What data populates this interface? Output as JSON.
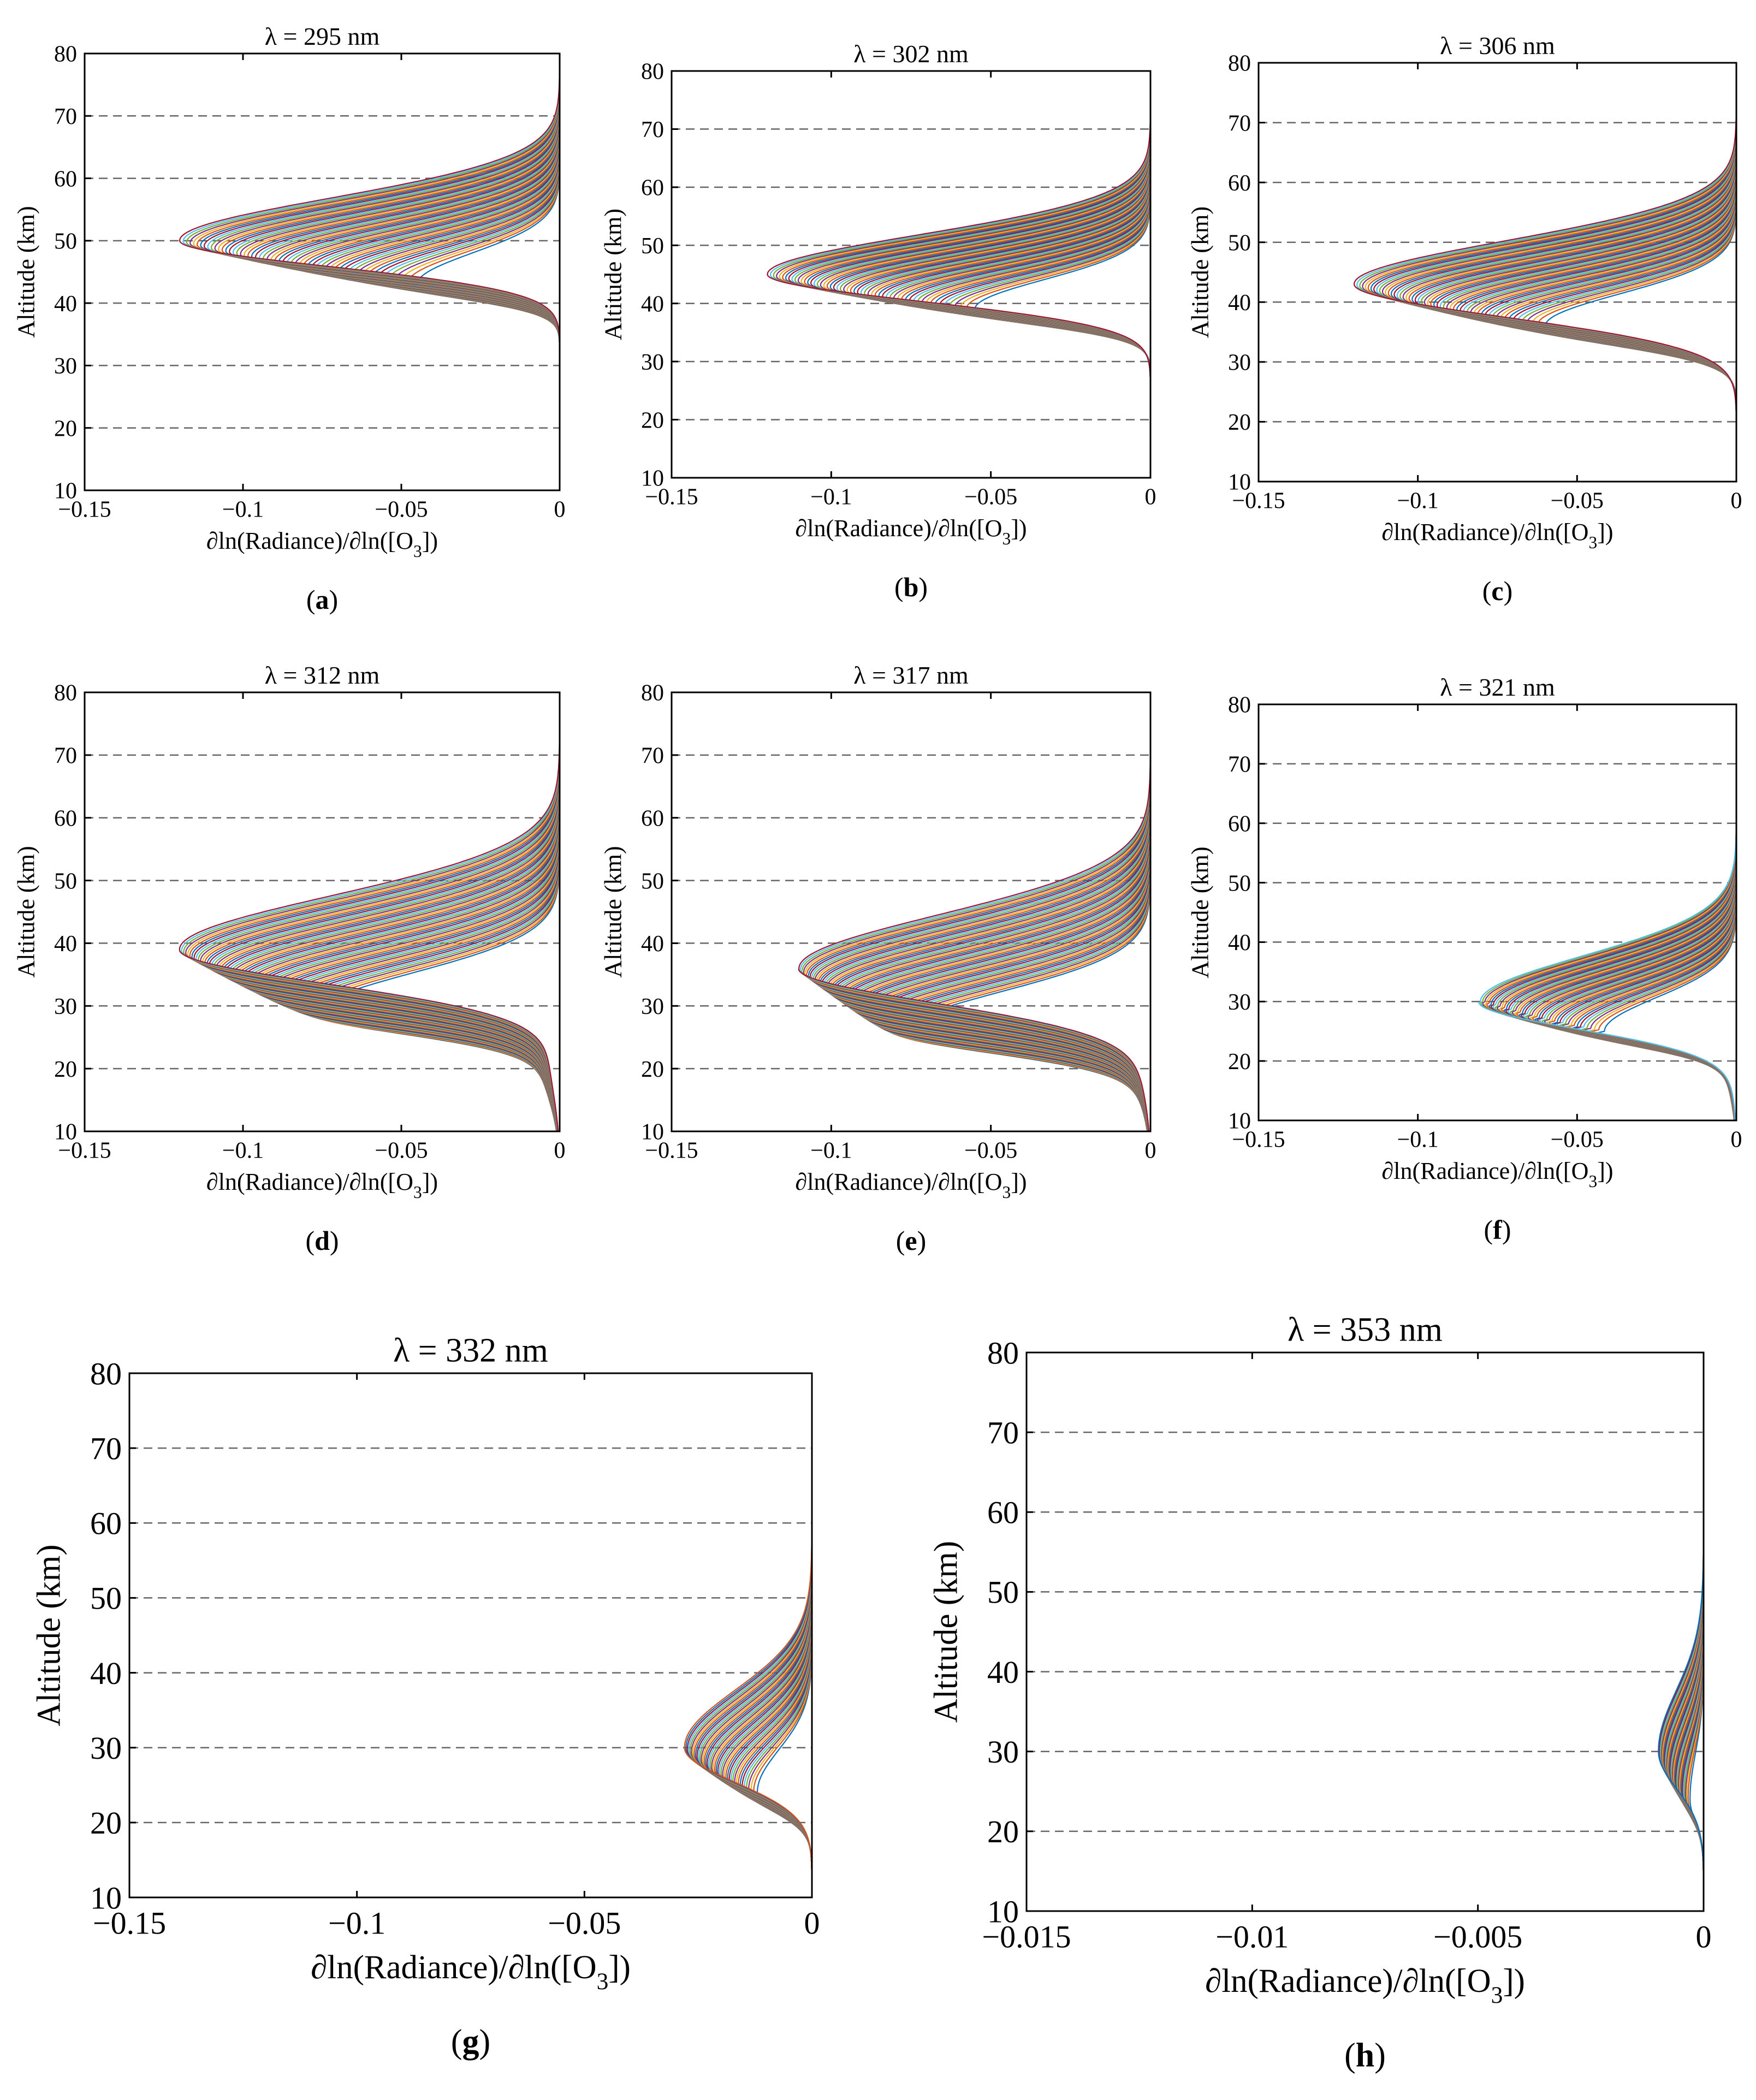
{
  "figure": {
    "background": "#ffffff"
  },
  "colors": [
    "#0072bd",
    "#d95319",
    "#edb120",
    "#7e2f8e",
    "#77ac30",
    "#4dbeee",
    "#a2142f"
  ],
  "chart_data": [
    {
      "id": "a",
      "type": "line",
      "title": "λ = 295 nm",
      "panel_label": "a",
      "xlabel": "∂ln(Radiance)/∂ln([O",
      "xlabel_sub": "3",
      "xlabel_suffix": "])",
      "ylabel": "Altitude (km)",
      "xlim": [
        -0.15,
        0
      ],
      "ylim": [
        10,
        80
      ],
      "xticks": [
        -0.15,
        -0.1,
        -0.05,
        0
      ],
      "xticklabels": [
        "−0.15",
        "−0.1",
        "−0.05",
        "0"
      ],
      "yticks": [
        10,
        20,
        30,
        40,
        50,
        60,
        70,
        80
      ],
      "grid_y": [
        20,
        30,
        40,
        50,
        60,
        70
      ],
      "curves": {
        "n": 56,
        "peak_alt": [
          43,
          50
        ],
        "peak_val": [
          -0.045,
          -0.12
        ],
        "width_below": 4.5,
        "width_above": 8,
        "floor": 0
      }
    },
    {
      "id": "b",
      "type": "line",
      "title": "λ = 302 nm",
      "panel_label": "b",
      "xlabel": "∂ln(Radiance)/∂ln([O",
      "xlabel_sub": "3",
      "xlabel_suffix": "])",
      "ylabel": "Altitude (km)",
      "xlim": [
        -0.15,
        0
      ],
      "ylim": [
        10,
        80
      ],
      "xticks": [
        -0.15,
        -0.1,
        -0.05,
        0
      ],
      "xticklabels": [
        "−0.15",
        "−0.1",
        "−0.05",
        "0"
      ],
      "yticks": [
        10,
        20,
        30,
        40,
        50,
        60,
        70,
        80
      ],
      "grid_y": [
        20,
        30,
        40,
        50,
        60,
        70
      ],
      "curves": {
        "n": 56,
        "peak_alt": [
          39,
          45
        ],
        "peak_val": [
          -0.055,
          -0.12
        ],
        "width_below": 5,
        "width_above": 8,
        "floor": 0
      }
    },
    {
      "id": "c",
      "type": "line",
      "title": "λ = 306 nm",
      "panel_label": "c",
      "xlabel": "∂ln(Radiance)/∂ln([O",
      "xlabel_sub": "3",
      "xlabel_suffix": "])",
      "ylabel": "Altitude (km)",
      "xlim": [
        -0.15,
        0
      ],
      "ylim": [
        10,
        80
      ],
      "xticks": [
        -0.15,
        -0.1,
        -0.05,
        0
      ],
      "xticklabels": [
        "−0.15",
        "−0.1",
        "−0.05",
        "0"
      ],
      "yticks": [
        10,
        20,
        30,
        40,
        50,
        60,
        70,
        80
      ],
      "grid_y": [
        20,
        30,
        40,
        50,
        60,
        70
      ],
      "curves": {
        "n": 56,
        "peak_alt": [
          36,
          43
        ],
        "peak_val": [
          -0.06,
          -0.12
        ],
        "width_below": 6,
        "width_above": 8.5,
        "floor": 0
      }
    },
    {
      "id": "d",
      "type": "line",
      "title": "λ = 312 nm",
      "panel_label": "d",
      "xlabel": "∂ln(Radiance)/∂ln([O",
      "xlabel_sub": "3",
      "xlabel_suffix": "])",
      "ylabel": "Altitude (km)",
      "xlim": [
        -0.15,
        0
      ],
      "ylim": [
        10,
        80
      ],
      "xticks": [
        -0.15,
        -0.1,
        -0.05,
        0
      ],
      "xticklabels": [
        "−0.15",
        "−0.1",
        "−0.05",
        "0"
      ],
      "yticks": [
        10,
        20,
        30,
        40,
        50,
        60,
        70,
        80
      ],
      "grid_y": [
        20,
        30,
        40,
        50,
        60,
        70
      ],
      "curves": {
        "n": 56,
        "peak_alt": [
          29,
          39
        ],
        "peak_val": [
          -0.075,
          -0.12
        ],
        "width_below": 6,
        "width_above": 10,
        "floor": -0.006
      }
    },
    {
      "id": "e",
      "type": "line",
      "title": "λ = 317 nm",
      "panel_label": "e",
      "xlabel": "∂ln(Radiance)/∂ln([O",
      "xlabel_sub": "3",
      "xlabel_suffix": "])",
      "ylabel": "Altitude (km)",
      "xlim": [
        -0.15,
        0
      ],
      "ylim": [
        10,
        80
      ],
      "xticks": [
        -0.15,
        -0.1,
        -0.05,
        0
      ],
      "xticklabels": [
        "−0.15",
        "−0.1",
        "−0.05",
        "0"
      ],
      "yticks": [
        10,
        20,
        30,
        40,
        50,
        60,
        70,
        80
      ],
      "grid_y": [
        20,
        30,
        40,
        50,
        60,
        70
      ],
      "curves": {
        "n": 56,
        "peak_alt": [
          26,
          36
        ],
        "peak_val": [
          -0.075,
          -0.11
        ],
        "width_below": 6,
        "width_above": 10,
        "floor": -0.006
      }
    },
    {
      "id": "f",
      "type": "line",
      "title": "λ = 321 nm",
      "panel_label": "f",
      "xlabel": "∂ln(Radiance)/∂ln([O",
      "xlabel_sub": "3",
      "xlabel_suffix": "])",
      "ylabel": "Altitude (km)",
      "xlim": [
        -0.15,
        0
      ],
      "ylim": [
        10,
        80
      ],
      "xticks": [
        -0.15,
        -0.1,
        -0.05,
        0
      ],
      "xticklabels": [
        "−0.15",
        "−0.1",
        "−0.05",
        "0"
      ],
      "yticks": [
        10,
        20,
        30,
        40,
        50,
        60,
        70,
        80
      ],
      "grid_y": [
        20,
        30,
        40,
        50,
        60,
        70
      ],
      "curves": {
        "n": 48,
        "peak_alt": [
          25,
          30
        ],
        "peak_val": [
          -0.04,
          -0.08
        ],
        "width_below": 5,
        "width_above": 9,
        "floor": -0.004
      }
    },
    {
      "id": "g",
      "type": "line",
      "title": "λ = 332 nm",
      "panel_label": "g",
      "xlabel": "∂ln(Radiance)/∂ln([O",
      "xlabel_sub": "3",
      "xlabel_suffix": "])",
      "ylabel": "Altitude (km)",
      "xlim": [
        -0.15,
        0
      ],
      "ylim": [
        10,
        80
      ],
      "xticks": [
        -0.15,
        -0.1,
        -0.05,
        0
      ],
      "xticklabels": [
        "−0.15",
        "−0.1",
        "−0.05",
        "0"
      ],
      "yticks": [
        10,
        20,
        30,
        40,
        50,
        60,
        70,
        80
      ],
      "grid_y": [
        20,
        30,
        40,
        50,
        60,
        70
      ],
      "curves": {
        "n": 44,
        "peak_alt": [
          24,
          30
        ],
        "peak_val": [
          -0.012,
          -0.028
        ],
        "width_below": 5,
        "width_above": 9,
        "floor": 0
      }
    },
    {
      "id": "h",
      "type": "line",
      "title": "λ = 353 nm",
      "panel_label": "h",
      "xlabel": "∂ln(Radiance)/∂ln([O",
      "xlabel_sub": "3",
      "xlabel_suffix": "])",
      "ylabel": "Altitude (km)",
      "xlim": [
        -0.015,
        0
      ],
      "ylim": [
        10,
        80
      ],
      "xticks": [
        -0.015,
        -0.01,
        -0.005,
        0
      ],
      "xticklabels": [
        "−0.015",
        "−0.01",
        "−0.005",
        "0"
      ],
      "yticks": [
        10,
        20,
        30,
        40,
        50,
        60,
        70,
        80
      ],
      "grid_y": [
        20,
        30,
        40,
        50,
        60,
        70
      ],
      "curves": {
        "n": 36,
        "peak_alt": [
          24,
          30
        ],
        "peak_val": [
          -0.0003,
          -0.001
        ],
        "width_below": 5,
        "width_above": 9,
        "floor": 0
      }
    }
  ]
}
